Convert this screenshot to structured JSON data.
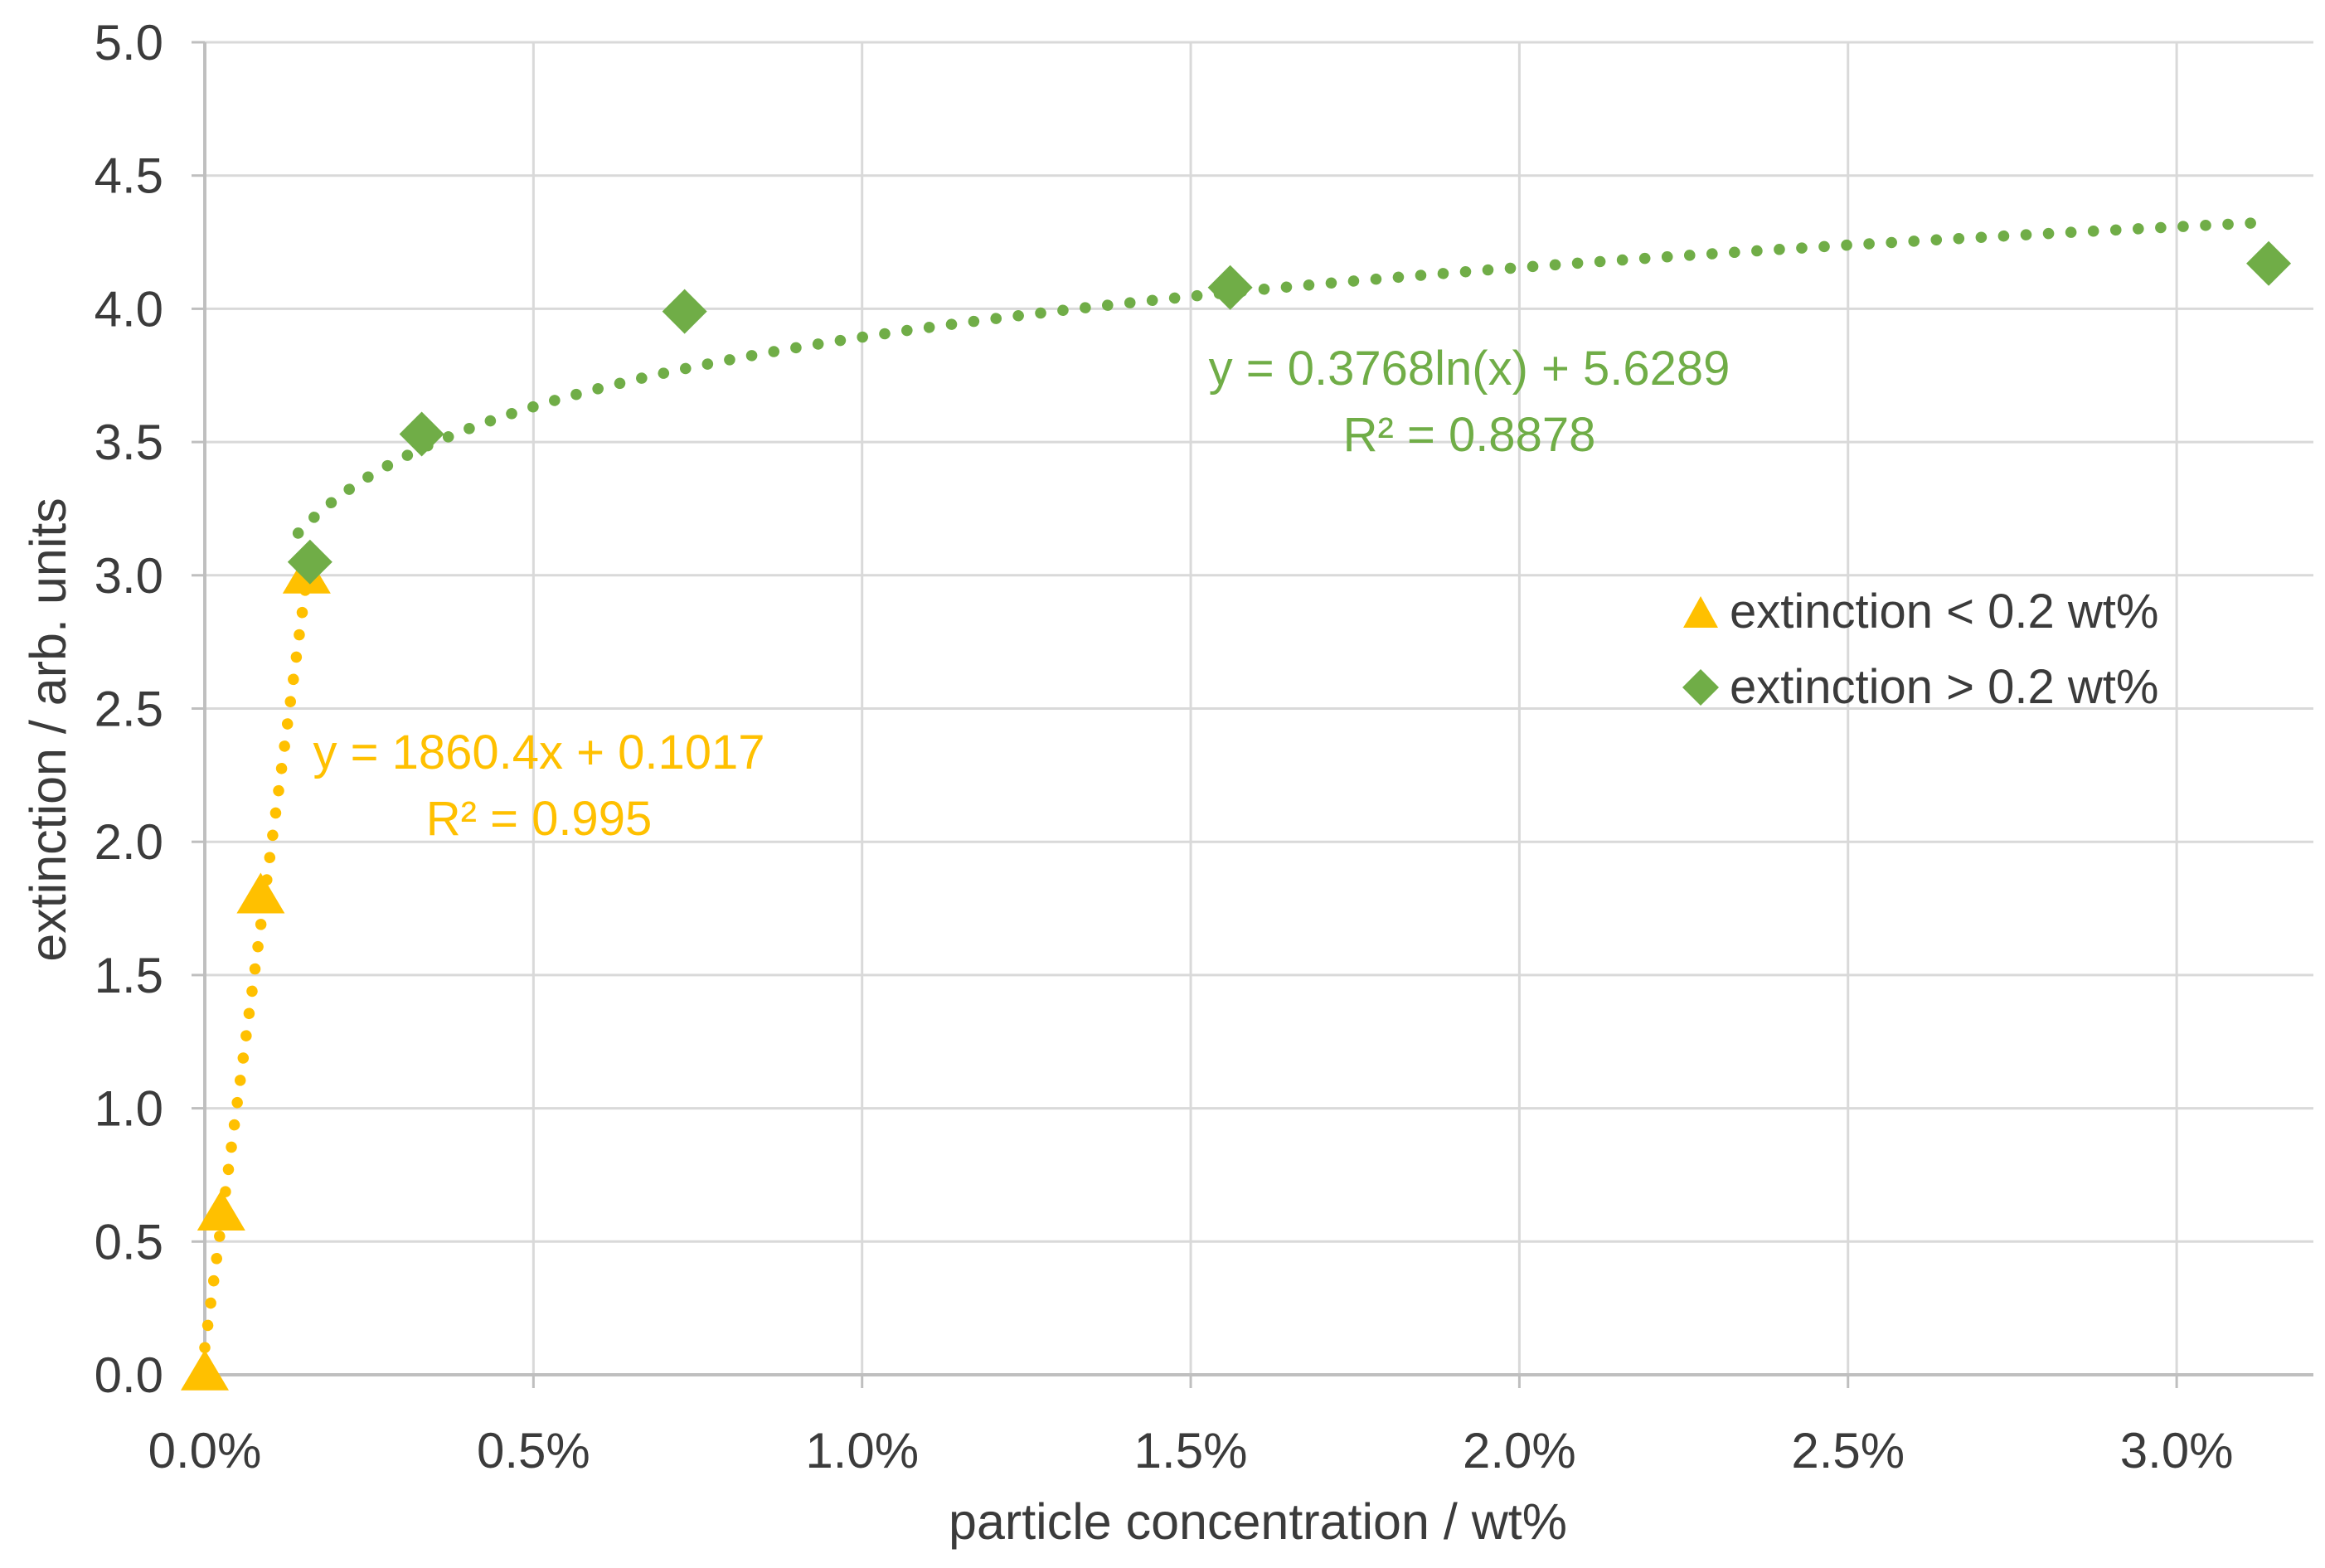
{
  "chart_data": {
    "type": "scatter",
    "title": "",
    "xlabel": "particle concentration / wt%",
    "ylabel": "extinction / arb. units",
    "x_unit": "wt%",
    "xlim": [
      0,
      3.22
    ],
    "ylim": [
      0,
      5
    ],
    "grid": true,
    "x_ticks": [
      "0.0%",
      "0.5%",
      "1.0%",
      "1.5%",
      "2.0%",
      "2.5%",
      "3.0%"
    ],
    "x_tick_values": [
      0,
      0.5,
      1.0,
      1.5,
      2.0,
      2.5,
      3.0
    ],
    "y_ticks": [
      "0.0",
      "0.5",
      "1.0",
      "1.5",
      "2.0",
      "2.5",
      "3.0",
      "3.5",
      "4.0",
      "4.5",
      "5.0"
    ],
    "y_tick_values": [
      0,
      0.5,
      1.0,
      1.5,
      2.0,
      2.5,
      3.0,
      3.5,
      4.0,
      4.5,
      5.0
    ],
    "legend_position": "middle-right",
    "colors": {
      "gridline": "#D9D9D9",
      "axis": "#BFBFBF",
      "tick_text": "#3b3b3b"
    },
    "series": [
      {
        "name": "extinction < 0.2 wt%",
        "marker": "triangle",
        "color": "#FFC000",
        "points": [
          [
            0.0,
            0.01
          ],
          [
            0.025,
            0.61
          ],
          [
            0.085,
            1.8
          ],
          [
            0.155,
            3.0
          ]
        ],
        "trendline": {
          "type": "linear",
          "style": "dotted",
          "equation": "y = 1860.4x + 0.1017",
          "r_squared": "R² = 0.995",
          "slope": 1860.4,
          "intercept": 0.1017,
          "x_range_wtpct": [
            0.0,
            0.158
          ]
        }
      },
      {
        "name": "extinction > 0.2 wt%",
        "marker": "diamond",
        "color": "#70AD47",
        "points": [
          [
            0.16,
            3.05
          ],
          [
            0.33,
            3.53
          ],
          [
            0.73,
            3.99
          ],
          [
            1.56,
            4.08
          ],
          [
            3.14,
            4.17
          ]
        ],
        "trendline": {
          "type": "logarithmic",
          "style": "dotted",
          "equation": "y = 0.3768ln(x) + 5.6289",
          "r_squared": "R² = 0.8878",
          "coefficient": 0.3768,
          "intercept": 5.6289,
          "x_range_wtpct": [
            0.142,
            3.12
          ]
        }
      }
    ]
  }
}
